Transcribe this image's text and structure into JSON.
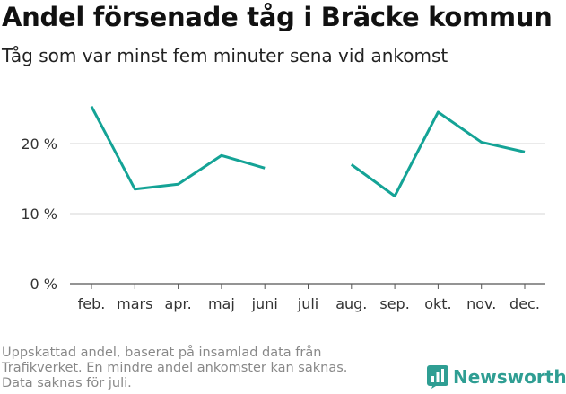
{
  "header": {
    "title": "Andel försenade tåg i Bräcke kommun",
    "subtitle": "Tåg som var minst fem minuter sena vid ankomst"
  },
  "footnote": {
    "lines": [
      "Uppskattad andel, baserat på insamlad data från",
      "Trafikverket. En mindre andel ankomster kan saknas.",
      "Data saknas för juli."
    ]
  },
  "brand": {
    "name": "Newsworthy",
    "icon": "bar-chart-logo-icon",
    "color": "#2f9e93"
  },
  "chart_data": {
    "type": "line",
    "categories": [
      "feb.",
      "mars",
      "apr.",
      "maj",
      "juni",
      "juli",
      "aug.",
      "sep.",
      "okt.",
      "nov.",
      "dec."
    ],
    "series": [
      {
        "values": [
          25.3,
          13.5,
          14.2,
          18.3,
          16.5,
          null,
          17.0,
          12.5,
          24.5,
          20.2,
          18.8
        ],
        "color": "#14a396"
      }
    ],
    "y_ticks": [
      {
        "value": 0,
        "label": "0 %"
      },
      {
        "value": 10,
        "label": "10 %"
      },
      {
        "value": 20,
        "label": "20 %"
      }
    ],
    "ylim": [
      0,
      27
    ],
    "grid": true,
    "legend": "none"
  }
}
